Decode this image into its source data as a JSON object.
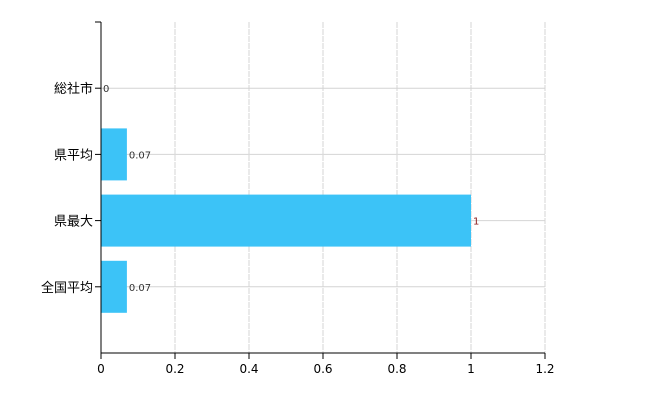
{
  "chart_data": {
    "type": "bar",
    "orientation": "horizontal",
    "categories": [
      "総社市",
      "県平均",
      "県最大",
      "全国平均"
    ],
    "values": [
      0,
      0.07,
      1,
      0.07
    ],
    "data_labels": [
      "0",
      "0.07",
      "1",
      "0.07"
    ],
    "xlim": [
      0,
      1.2
    ],
    "x_ticks": [
      "0",
      "0.2",
      "0.4",
      "0.6",
      "0.8",
      "1",
      "1.2"
    ],
    "grid": true,
    "title": "",
    "xlabel": "",
    "ylabel": "",
    "colors": {
      "bar": "#3cc3f7",
      "grid": "#d4d4d4",
      "axis": "#000000",
      "label": "#333333",
      "max_label": "#8b1a1a"
    }
  }
}
